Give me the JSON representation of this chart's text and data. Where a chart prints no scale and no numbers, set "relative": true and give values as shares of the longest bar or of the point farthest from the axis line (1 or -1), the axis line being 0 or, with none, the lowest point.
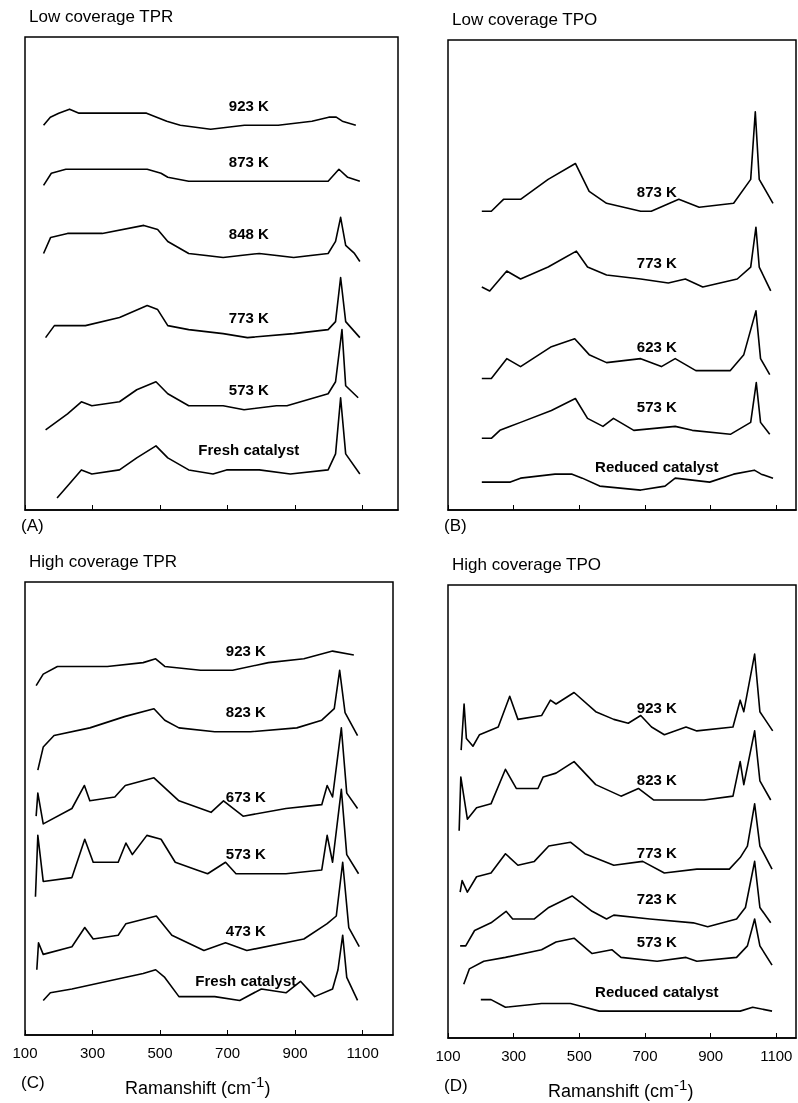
{
  "chart_data": [
    {
      "type": "line",
      "title": "Low coverage TPR",
      "annotations": [
        "(A)"
      ],
      "relative": true,
      "xlim": [
        100,
        1205
      ],
      "xticks": [
        100,
        300,
        500,
        700,
        900,
        1100
      ],
      "tick_labels": false,
      "marker": "none",
      "series": [
        {
          "name": "923 K",
          "color": "#000000",
          "x": [
            155,
            175,
            200,
            232,
            260,
            300,
            400,
            460,
            490,
            520,
            560,
            650,
            750,
            850,
            950,
            1000,
            1022,
            1040,
            1080
          ],
          "values": [
            0.96,
            0.98,
            0.99,
            1.0,
            0.99,
            0.99,
            0.99,
            0.99,
            0.98,
            0.97,
            0.96,
            0.95,
            0.96,
            0.96,
            0.97,
            0.98,
            0.98,
            0.97,
            0.96
          ]
        },
        {
          "name": "873 K",
          "color": "#000000",
          "x": [
            155,
            178,
            221,
            277,
            380,
            462,
            503,
            523,
            585,
            687,
            794,
            896,
            998,
            1030,
            1056,
            1092
          ],
          "values": [
            0.81,
            0.84,
            0.85,
            0.85,
            0.85,
            0.85,
            0.84,
            0.83,
            0.82,
            0.82,
            0.82,
            0.82,
            0.82,
            0.85,
            0.83,
            0.82
          ]
        },
        {
          "name": "848 K",
          "color": "#000000",
          "x": [
            155,
            176,
            226,
            329,
            452,
            493,
            523,
            585,
            687,
            794,
            896,
            998,
            1020,
            1035,
            1050,
            1076,
            1092
          ],
          "values": [
            0.64,
            0.68,
            0.69,
            0.69,
            0.71,
            0.7,
            0.67,
            0.64,
            0.63,
            0.64,
            0.63,
            0.64,
            0.67,
            0.73,
            0.66,
            0.64,
            0.62
          ]
        },
        {
          "name": "773 K",
          "color": "#000000",
          "x": [
            161,
            187,
            279,
            380,
            462,
            493,
            523,
            585,
            687,
            759,
            896,
            998,
            1020,
            1035,
            1050,
            1092
          ],
          "values": [
            0.43,
            0.46,
            0.46,
            0.48,
            0.51,
            0.5,
            0.46,
            0.45,
            0.44,
            0.43,
            0.44,
            0.45,
            0.47,
            0.58,
            0.47,
            0.43
          ]
        },
        {
          "name": "573 K",
          "color": "#000000",
          "x": [
            161,
            226,
            267,
            298,
            380,
            431,
            488,
            523,
            585,
            687,
            749,
            845,
            876,
            998,
            1020,
            1039,
            1050,
            1087
          ],
          "values": [
            0.2,
            0.24,
            0.27,
            0.26,
            0.27,
            0.3,
            0.32,
            0.29,
            0.26,
            0.26,
            0.25,
            0.26,
            0.26,
            0.29,
            0.32,
            0.45,
            0.31,
            0.28
          ]
        },
        {
          "name": "Fresh catalyst",
          "color": "#000000",
          "x": [
            195,
            226,
            267,
            298,
            380,
            431,
            488,
            523,
            585,
            657,
            697,
            738,
            794,
            886,
            998,
            1020,
            1035,
            1050,
            1092
          ],
          "values": [
            0.03,
            0.06,
            0.1,
            0.09,
            0.1,
            0.13,
            0.16,
            0.13,
            0.1,
            0.09,
            0.1,
            0.1,
            0.1,
            0.09,
            0.1,
            0.14,
            0.28,
            0.14,
            0.09
          ]
        }
      ]
    },
    {
      "type": "line",
      "title": "Low coverage TPO",
      "annotations": [
        "(B)"
      ],
      "relative": true,
      "xlim": [
        100,
        1160
      ],
      "xticks": [
        100,
        300,
        500,
        700,
        900,
        1100
      ],
      "tick_labels": false,
      "marker": "none",
      "series": [
        {
          "name": "873 K",
          "color": "#000000",
          "x": [
            203,
            232,
            269,
            321,
            405,
            488,
            530,
            583,
            687,
            719,
            803,
            865,
            970,
            1022,
            1036,
            1048,
            1090
          ],
          "values": [
            0.75,
            0.75,
            0.78,
            0.78,
            0.83,
            0.87,
            0.8,
            0.77,
            0.75,
            0.75,
            0.78,
            0.76,
            0.77,
            0.83,
            1.0,
            0.83,
            0.77
          ]
        },
        {
          "name": "773 K",
          "color": "#000000",
          "x": [
            203,
            227,
            279,
            321,
            405,
            491,
            525,
            583,
            687,
            771,
            823,
            876,
            981,
            1022,
            1038,
            1048,
            1083
          ],
          "values": [
            0.56,
            0.55,
            0.6,
            0.58,
            0.61,
            0.65,
            0.61,
            0.59,
            0.58,
            0.57,
            0.58,
            0.56,
            0.58,
            0.61,
            0.71,
            0.61,
            0.55
          ]
        },
        {
          "name": "623 K",
          "color": "#000000",
          "x": [
            203,
            232,
            279,
            321,
            415,
            486,
            530,
            583,
            687,
            750,
            792,
            855,
            960,
            1001,
            1038,
            1052,
            1080
          ],
          "values": [
            0.33,
            0.33,
            0.38,
            0.36,
            0.41,
            0.43,
            0.39,
            0.37,
            0.38,
            0.36,
            0.38,
            0.35,
            0.35,
            0.39,
            0.5,
            0.38,
            0.34
          ]
        },
        {
          "name": "573 K",
          "color": "#000000",
          "x": [
            203,
            232,
            258,
            321,
            415,
            488,
            525,
            572,
            604,
            666,
            792,
            844,
            960,
            1022,
            1039,
            1052,
            1080
          ],
          "values": [
            0.18,
            0.18,
            0.2,
            0.22,
            0.25,
            0.28,
            0.23,
            0.21,
            0.23,
            0.2,
            0.21,
            0.2,
            0.19,
            0.22,
            0.32,
            0.22,
            0.19
          ]
        },
        {
          "name": "Reduced catalyst",
          "color": "#000000",
          "x": [
            203,
            290,
            321,
            426,
            478,
            509,
            562,
            687,
            761,
            792,
            897,
            970,
            1033,
            1054,
            1090
          ],
          "values": [
            0.07,
            0.07,
            0.08,
            0.09,
            0.09,
            0.08,
            0.06,
            0.05,
            0.06,
            0.08,
            0.07,
            0.09,
            0.1,
            0.09,
            0.08
          ]
        }
      ]
    },
    {
      "type": "line",
      "title": "High coverage TPR",
      "annotations": [
        "(C)"
      ],
      "xlabel": "Ramanshift (cm$^{-1}$)",
      "relative": true,
      "xlim": [
        100,
        1190
      ],
      "xticks": [
        100,
        300,
        500,
        700,
        900,
        1100
      ],
      "tick_labels": "x",
      "marker": "none",
      "series": [
        {
          "name": "923 K",
          "color": "#000000",
          "x": [
            133,
            154,
            196,
            239,
            344,
            450,
            487,
            514,
            620,
            715,
            821,
            926,
            1011,
            1074
          ],
          "values": [
            0.91,
            0.94,
            0.96,
            0.96,
            0.96,
            0.97,
            0.98,
            0.96,
            0.95,
            0.95,
            0.97,
            0.98,
            1.0,
            0.99
          ]
        },
        {
          "name": "823 K",
          "color": "#000000",
          "x": [
            138,
            154,
            186,
            292,
            397,
            482,
            514,
            556,
            662,
            768,
            905,
            979,
            1016,
            1032,
            1048,
            1085
          ],
          "values": [
            0.69,
            0.75,
            0.78,
            0.8,
            0.83,
            0.85,
            0.82,
            0.8,
            0.79,
            0.79,
            0.8,
            0.82,
            0.85,
            0.95,
            0.84,
            0.78
          ]
        },
        {
          "name": "673 K",
          "color": "#000000",
          "x": [
            133,
            138,
            154,
            239,
            276,
            292,
            366,
            397,
            482,
            556,
            651,
            688,
            746,
            873,
            979,
            995,
            1011,
            1037,
            1053,
            1085
          ],
          "values": [
            0.57,
            0.63,
            0.55,
            0.59,
            0.65,
            0.61,
            0.62,
            0.65,
            0.67,
            0.61,
            0.58,
            0.61,
            0.57,
            0.59,
            0.6,
            0.65,
            0.62,
            0.8,
            0.63,
            0.59
          ]
        },
        {
          "name": "573 K",
          "color": "#000000",
          "x": [
            131,
            138,
            154,
            239,
            277,
            302,
            376,
            399,
            418,
            461,
            503,
            545,
            609,
            641,
            694,
            725,
            873,
            979,
            995,
            1011,
            1037,
            1053,
            1088
          ],
          "values": [
            0.36,
            0.52,
            0.4,
            0.41,
            0.51,
            0.45,
            0.45,
            0.5,
            0.47,
            0.52,
            0.51,
            0.45,
            0.43,
            0.42,
            0.45,
            0.42,
            0.42,
            0.43,
            0.52,
            0.45,
            0.64,
            0.47,
            0.42
          ]
        },
        {
          "name": "473 K",
          "color": "#000000",
          "x": [
            135,
            140,
            154,
            239,
            277,
            302,
            376,
            399,
            489,
            535,
            630,
            694,
            757,
            926,
            995,
            1022,
            1041,
            1059,
            1090
          ],
          "values": [
            0.17,
            0.24,
            0.21,
            0.23,
            0.28,
            0.25,
            0.26,
            0.29,
            0.31,
            0.26,
            0.22,
            0.24,
            0.22,
            0.25,
            0.29,
            0.31,
            0.45,
            0.28,
            0.23
          ]
        },
        {
          "name": "Fresh catalyst",
          "color": "#000000",
          "x": [
            154,
            175,
            239,
            344,
            450,
            487,
            514,
            556,
            662,
            736,
            800,
            873,
            916,
            958,
            1011,
            1027,
            1041,
            1053,
            1085
          ],
          "values": [
            0.09,
            0.11,
            0.12,
            0.14,
            0.16,
            0.17,
            0.15,
            0.1,
            0.1,
            0.09,
            0.12,
            0.11,
            0.14,
            0.1,
            0.12,
            0.17,
            0.26,
            0.15,
            0.09
          ]
        }
      ]
    },
    {
      "type": "line",
      "title": "High coverage TPO",
      "annotations": [
        "(D)"
      ],
      "xlabel": "Ramanshift (cm$^{-1}$)",
      "relative": true,
      "xlim": [
        100,
        1160
      ],
      "xticks": [
        100,
        300,
        500,
        700,
        900,
        1100
      ],
      "tick_labels": "x",
      "marker": "none",
      "series": [
        {
          "name": "923 K",
          "color": "#000000",
          "x": [
            140,
            149,
            156,
            176,
            196,
            253,
            288,
            313,
            385,
            412,
            429,
            484,
            550,
            605,
            649,
            687,
            720,
            759,
            825,
            858,
            968,
            990,
            1001,
            1034,
            1050,
            1089
          ],
          "values": [
            0.75,
            0.87,
            0.78,
            0.76,
            0.79,
            0.81,
            0.89,
            0.83,
            0.84,
            0.88,
            0.87,
            0.9,
            0.85,
            0.83,
            0.82,
            0.84,
            0.81,
            0.79,
            0.81,
            0.8,
            0.81,
            0.88,
            0.85,
            1.0,
            0.85,
            0.8
          ]
        },
        {
          "name": "823 K",
          "color": "#000000",
          "x": [
            134,
            139,
            159,
            187,
            231,
            275,
            308,
            374,
            390,
            429,
            484,
            550,
            627,
            680,
            726,
            880,
            968,
            990,
            1001,
            1034,
            1050,
            1083
          ],
          "values": [
            0.54,
            0.68,
            0.57,
            0.6,
            0.61,
            0.7,
            0.65,
            0.65,
            0.68,
            0.69,
            0.72,
            0.66,
            0.63,
            0.65,
            0.62,
            0.62,
            0.63,
            0.72,
            0.66,
            0.8,
            0.67,
            0.62
          ]
        },
        {
          "name": "773 K",
          "color": "#000000",
          "x": [
            137,
            143,
            159,
            187,
            231,
            275,
            313,
            363,
            407,
            473,
            517,
            605,
            693,
            759,
            858,
            957,
            990,
            1012,
            1034,
            1050,
            1087
          ],
          "values": [
            0.38,
            0.41,
            0.38,
            0.42,
            0.43,
            0.48,
            0.45,
            0.46,
            0.5,
            0.51,
            0.48,
            0.45,
            0.46,
            0.43,
            0.44,
            0.44,
            0.47,
            0.5,
            0.61,
            0.5,
            0.44
          ]
        },
        {
          "name": "723 K",
          "color": "#000000",
          "x": [
            137,
            154,
            181,
            231,
            277,
            297,
            363,
            407,
            478,
            539,
            583,
            605,
            715,
            847,
            891,
            979,
            1006,
            1034,
            1050,
            1083
          ],
          "values": [
            0.24,
            0.24,
            0.28,
            0.3,
            0.33,
            0.31,
            0.31,
            0.34,
            0.37,
            0.33,
            0.31,
            0.32,
            0.31,
            0.3,
            0.29,
            0.31,
            0.34,
            0.46,
            0.34,
            0.3
          ]
        },
        {
          "name": "573 K",
          "color": "#000000",
          "x": [
            148,
            165,
            209,
            275,
            385,
            429,
            484,
            539,
            599,
            627,
            737,
            825,
            858,
            979,
            1012,
            1034,
            1050,
            1087
          ],
          "values": [
            0.14,
            0.18,
            0.2,
            0.21,
            0.23,
            0.25,
            0.26,
            0.22,
            0.23,
            0.21,
            0.2,
            0.21,
            0.2,
            0.21,
            0.24,
            0.31,
            0.24,
            0.19
          ]
        },
        {
          "name": "Reduced catalyst",
          "color": "#000000",
          "x": [
            200,
            231,
            275,
            385,
            473,
            517,
            561,
            649,
            770,
            880,
            990,
            1028,
            1087
          ],
          "values": [
            0.1,
            0.1,
            0.08,
            0.09,
            0.09,
            0.08,
            0.07,
            0.07,
            0.07,
            0.07,
            0.07,
            0.08,
            0.07
          ]
        }
      ]
    }
  ]
}
